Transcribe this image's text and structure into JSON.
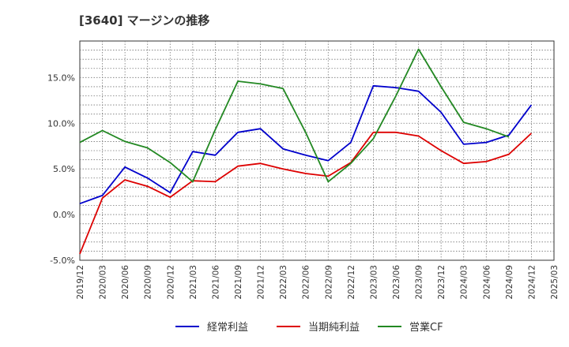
{
  "chart_data": {
    "type": "line",
    "title": "[3640]  マージンの推移",
    "xlabel": "",
    "ylabel": "",
    "x": [
      "2019/12",
      "2020/03",
      "2020/06",
      "2020/09",
      "2020/12",
      "2021/03",
      "2021/06",
      "2021/09",
      "2021/12",
      "2022/03",
      "2022/06",
      "2022/09",
      "2022/12",
      "2023/03",
      "2023/06",
      "2023/09",
      "2023/12",
      "2024/03",
      "2024/06",
      "2024/09",
      "2024/12",
      "2025/03"
    ],
    "y_ticks": [
      -5.0,
      0.0,
      5.0,
      10.0,
      15.0
    ],
    "y_tick_labels": [
      "-5.0%",
      "0.0%",
      "5.0%",
      "10.0%",
      "15.0%"
    ],
    "ylim": [
      -5.0,
      19.0
    ],
    "grid": true,
    "legend_position": "bottom",
    "series": [
      {
        "name": "経常利益",
        "color": "#0000cc",
        "values": [
          1.2,
          2.1,
          5.2,
          4.0,
          2.4,
          6.9,
          6.5,
          9.0,
          9.4,
          7.2,
          6.5,
          5.9,
          7.9,
          14.1,
          13.9,
          13.5,
          11.2,
          7.7,
          7.9,
          8.7,
          12.0,
          null
        ]
      },
      {
        "name": "当期純利益",
        "color": "#dd0000",
        "values": [
          -4.3,
          1.8,
          3.8,
          3.1,
          1.9,
          3.7,
          3.6,
          5.3,
          5.6,
          5.0,
          4.5,
          4.2,
          5.7,
          9.0,
          9.0,
          8.6,
          7.0,
          5.6,
          5.8,
          6.6,
          8.9,
          null
        ]
      },
      {
        "name": "営業CF",
        "color": "#228822",
        "values": [
          7.9,
          9.2,
          8.0,
          7.3,
          5.7,
          3.6,
          9.3,
          14.6,
          14.3,
          13.8,
          9.0,
          3.6,
          5.6,
          8.3,
          13.0,
          18.1,
          14.0,
          10.1,
          9.4,
          8.5,
          null,
          null
        ]
      }
    ]
  }
}
